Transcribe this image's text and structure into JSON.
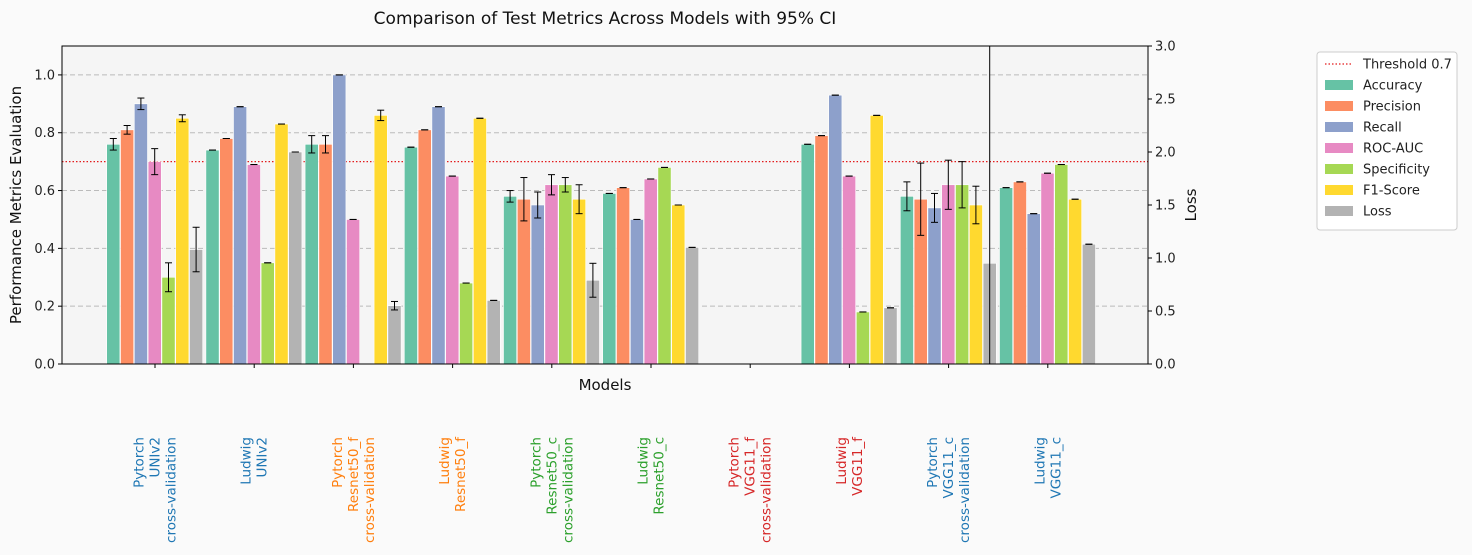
{
  "chart_data": {
    "type": "bar",
    "title": "Comparison of Test Metrics Across Models with 95% CI",
    "xlabel": "Models",
    "ylabel": "Performance Metrics Evaluation",
    "y2label": "Loss",
    "ylim": [
      0,
      1.1
    ],
    "y2lim": [
      0,
      3.0
    ],
    "yticks": [
      "0.0",
      "0.2",
      "0.4",
      "0.6",
      "0.8",
      "1.0"
    ],
    "y2ticks": [
      "0.0",
      "0.5",
      "1.0",
      "1.5",
      "2.0",
      "2.5",
      "3.0"
    ],
    "grid": "horizontal dashed",
    "legend_position": "outside-right",
    "threshold": {
      "label": "Threshold 0.7",
      "value": 0.7,
      "color": "#e31a1c"
    },
    "categories": [
      {
        "lines": [
          "Pytorch",
          "UNIv2",
          "cross-validation"
        ],
        "color": "#1f77b4"
      },
      {
        "lines": [
          "Ludwig",
          "UNIv2"
        ],
        "color": "#1f77b4"
      },
      {
        "lines": [
          "Pytorch",
          "Resnet50_f",
          "cross-validation"
        ],
        "color": "#ff7f0e"
      },
      {
        "lines": [
          "Ludwig",
          "Resnet50_f"
        ],
        "color": "#ff7f0e"
      },
      {
        "lines": [
          "Pytorch",
          "Resnet50_c",
          "cross-validation"
        ],
        "color": "#2ca02c"
      },
      {
        "lines": [
          "Ludwig",
          "Resnet50_c"
        ],
        "color": "#2ca02c"
      },
      {
        "lines": [
          "Pytorch",
          "VGG11_f",
          "cross-validation"
        ],
        "color": "#d62728"
      },
      {
        "lines": [
          "Ludwig",
          "VGG11_f"
        ],
        "color": "#d62728"
      },
      {
        "lines": [
          "Pytorch",
          "VGG11_c",
          "cross-validation"
        ],
        "color": "#1f77b4"
      },
      {
        "lines": [
          "Ludwig",
          "VGG11_c"
        ],
        "color": "#1f77b4"
      }
    ],
    "series": [
      {
        "name": "Accuracy",
        "color": "#66c2a5",
        "axis": "left",
        "values": [
          0.76,
          0.74,
          0.76,
          0.75,
          0.58,
          0.59,
          0.0,
          0.76,
          0.58,
          0.61
        ],
        "errors": [
          0.02,
          0.0,
          0.03,
          0.0,
          0.02,
          0.0,
          0.0,
          0.0,
          0.05,
          0.0
        ]
      },
      {
        "name": "Precision",
        "color": "#fc8d62",
        "axis": "left",
        "values": [
          0.81,
          0.78,
          0.76,
          0.81,
          0.57,
          0.61,
          0.0,
          0.79,
          0.57,
          0.63
        ],
        "errors": [
          0.015,
          0.0,
          0.03,
          0.0,
          0.075,
          0.0,
          0.0,
          0.0,
          0.125,
          0.0
        ]
      },
      {
        "name": "Recall",
        "color": "#8da0cb",
        "axis": "left",
        "values": [
          0.9,
          0.89,
          1.0,
          0.89,
          0.55,
          0.5,
          0.0,
          0.93,
          0.54,
          0.52
        ],
        "errors": [
          0.02,
          0.0,
          0.0,
          0.0,
          0.045,
          0.0,
          0.0,
          0.0,
          0.05,
          0.0
        ]
      },
      {
        "name": "ROC-AUC",
        "color": "#e78ac3",
        "axis": "left",
        "values": [
          0.7,
          0.69,
          0.5,
          0.65,
          0.62,
          0.64,
          0.0,
          0.65,
          0.62,
          0.66
        ],
        "errors": [
          0.045,
          0.0,
          0.0,
          0.0,
          0.035,
          0.0,
          0.0,
          0.0,
          0.085,
          0.0
        ]
      },
      {
        "name": "Specificity",
        "color": "#a6d854",
        "axis": "left",
        "values": [
          0.3,
          0.35,
          0.0,
          0.28,
          0.62,
          0.68,
          0.0,
          0.18,
          0.62,
          0.69
        ],
        "errors": [
          0.05,
          0.0,
          0.0,
          0.0,
          0.025,
          0.0,
          0.0,
          0.0,
          0.08,
          0.0
        ]
      },
      {
        "name": "F1-Score",
        "color": "#ffd92f",
        "axis": "left",
        "values": [
          0.85,
          0.83,
          0.86,
          0.85,
          0.57,
          0.55,
          0.0,
          0.86,
          0.55,
          0.57
        ],
        "errors": [
          0.012,
          0.0,
          0.018,
          0.0,
          0.05,
          0.0,
          0.0,
          0.0,
          0.065,
          0.0
        ]
      },
      {
        "name": "Loss",
        "color": "#b3b3b3",
        "axis": "right",
        "values": [
          1.08,
          2.0,
          0.55,
          0.6,
          0.79,
          1.1,
          0.0,
          0.53,
          0.95,
          1.13
        ],
        "errors": [
          0.21,
          0.0,
          0.04,
          0.0,
          0.16,
          0.0,
          0.0,
          0.0,
          2.05,
          0.0
        ]
      }
    ]
  }
}
